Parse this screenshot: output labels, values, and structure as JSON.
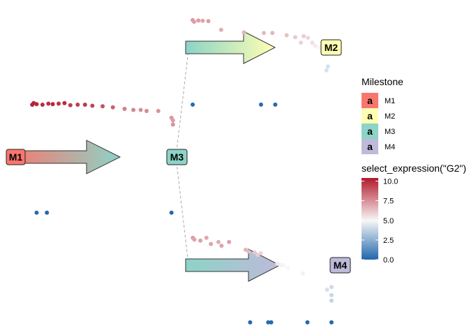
{
  "chart_data": {
    "type": "scatter",
    "plot_kind": "trajectory",
    "milestones": [
      {
        "id": "M1",
        "label": "M1",
        "color": "#F8766D"
      },
      {
        "id": "M2",
        "label": "M2",
        "color": "#FFFFB3"
      },
      {
        "id": "M3",
        "label": "M3",
        "color": "#8DD3C7"
      },
      {
        "id": "M4",
        "label": "M4",
        "color": "#BEBADA"
      }
    ],
    "edges": [
      {
        "from": "M1",
        "to": "M3"
      },
      {
        "from": "M3",
        "to": "M2"
      },
      {
        "from": "M3",
        "to": "M4"
      }
    ],
    "legend_milestone": {
      "title": "Milestone",
      "key_letter": "a",
      "items": [
        "M1",
        "M2",
        "M3",
        "M4"
      ]
    },
    "legend_color": {
      "title": "select_expression(\"G2\")",
      "ticks": [
        "10.0",
        "7.5",
        "5.0",
        "2.5",
        "0.0"
      ],
      "tick_values": [
        10,
        7.5,
        5,
        2.5,
        0
      ],
      "range": [
        0,
        10.4
      ],
      "low_color": "#2166AC",
      "mid_color": "#F7F7F7",
      "high_color": "#B2182B"
    },
    "cells": [
      {
        "edge": 0,
        "t": 0.02,
        "offset": 1.0,
        "value": 10.2
      },
      {
        "edge": 0,
        "t": 0.03,
        "offset": 1.03,
        "value": 10.1
      },
      {
        "edge": 0,
        "t": 0.05,
        "offset": 1.01,
        "value": 10.0
      },
      {
        "edge": 0,
        "t": 0.09,
        "offset": 1.0,
        "value": 9.9
      },
      {
        "edge": 0,
        "t": 0.13,
        "offset": 1.02,
        "value": 9.8
      },
      {
        "edge": 0,
        "t": 0.16,
        "offset": 1.01,
        "value": 10.0
      },
      {
        "edge": 0,
        "t": 0.2,
        "offset": 1.02,
        "value": 9.7
      },
      {
        "edge": 0,
        "t": 0.24,
        "offset": 1.03,
        "value": 9.9
      },
      {
        "edge": 0,
        "t": 0.28,
        "offset": 0.99,
        "value": 9.5
      },
      {
        "edge": 0,
        "t": 0.33,
        "offset": 1.0,
        "value": 9.4
      },
      {
        "edge": 0,
        "t": 0.38,
        "offset": 1.0,
        "value": 9.6
      },
      {
        "edge": 0,
        "t": 0.43,
        "offset": 0.98,
        "value": 9.3
      },
      {
        "edge": 0,
        "t": 0.5,
        "offset": 0.97,
        "value": 9.0
      },
      {
        "edge": 0,
        "t": 0.57,
        "offset": 0.95,
        "value": 8.6
      },
      {
        "edge": 0,
        "t": 0.65,
        "offset": 0.92,
        "value": 7.9
      },
      {
        "edge": 0,
        "t": 0.71,
        "offset": 0.9,
        "value": 7.7
      },
      {
        "edge": 0,
        "t": 0.76,
        "offset": 0.9,
        "value": 7.5
      },
      {
        "edge": 0,
        "t": 0.8,
        "offset": 0.88,
        "value": 7.6
      },
      {
        "edge": 0,
        "t": 0.88,
        "offset": 0.88,
        "value": 7.4
      },
      {
        "edge": 0,
        "t": 0.97,
        "offset": 0.75,
        "value": 7.3
      },
      {
        "edge": 0,
        "t": 0.98,
        "offset": 0.7,
        "value": 7.2
      },
      {
        "edge": 0,
        "t": 0.98,
        "offset": 0.62,
        "value": 7.4
      },
      {
        "edge": 0,
        "t": 0.05,
        "offset": -1.05,
        "value": 0.2
      },
      {
        "edge": 0,
        "t": 0.12,
        "offset": -1.05,
        "value": 0.1
      },
      {
        "edge": 0,
        "t": 0.97,
        "offset": -1.05,
        "value": 0.1
      },
      {
        "edge": 1,
        "t": 0.02,
        "offset": 0.85,
        "value": 7.3
      },
      {
        "edge": 1,
        "t": 0.03,
        "offset": 0.8,
        "value": 7.1
      },
      {
        "edge": 1,
        "t": 0.06,
        "offset": 0.84,
        "value": 7.2
      },
      {
        "edge": 1,
        "t": 0.09,
        "offset": 0.83,
        "value": 7.0
      },
      {
        "edge": 1,
        "t": 0.13,
        "offset": 0.82,
        "value": 7.1
      },
      {
        "edge": 1,
        "t": 0.22,
        "offset": 0.55,
        "value": 6.8
      },
      {
        "edge": 1,
        "t": 0.38,
        "offset": 0.47,
        "value": 6.6
      },
      {
        "edge": 1,
        "t": 0.52,
        "offset": 0.45,
        "value": 6.5
      },
      {
        "edge": 1,
        "t": 0.58,
        "offset": 0.45,
        "value": 6.6
      },
      {
        "edge": 1,
        "t": 0.68,
        "offset": 0.38,
        "value": 6.3
      },
      {
        "edge": 1,
        "t": 0.74,
        "offset": 0.32,
        "value": 6.1
      },
      {
        "edge": 1,
        "t": 0.8,
        "offset": 0.35,
        "value": 6.0
      },
      {
        "edge": 1,
        "t": 0.83,
        "offset": 0.3,
        "value": 5.8
      },
      {
        "edge": 1,
        "t": 0.78,
        "offset": 0.15,
        "value": 5.9
      },
      {
        "edge": 1,
        "t": 0.86,
        "offset": 0.15,
        "value": 5.6
      },
      {
        "edge": 1,
        "t": 0.88,
        "offset": 0.05,
        "value": 5.3
      },
      {
        "edge": 1,
        "t": 0.91,
        "offset": 0.0,
        "value": 5.1
      },
      {
        "edge": 1,
        "t": 0.96,
        "offset": -0.12,
        "value": 4.6
      },
      {
        "edge": 1,
        "t": 0.97,
        "offset": -0.35,
        "value": 4.2
      },
      {
        "edge": 1,
        "t": 0.96,
        "offset": -0.42,
        "value": 4.3
      },
      {
        "edge": 1,
        "t": 0.02,
        "offset": -1.05,
        "value": 0.1
      },
      {
        "edge": 1,
        "t": 0.5,
        "offset": -1.05,
        "value": 0.2
      },
      {
        "edge": 1,
        "t": 0.6,
        "offset": -1.05,
        "value": 0.1
      },
      {
        "edge": 2,
        "t": 0.02,
        "offset": 0.8,
        "value": 7.2
      },
      {
        "edge": 2,
        "t": 0.03,
        "offset": 0.75,
        "value": 7.0
      },
      {
        "edge": 2,
        "t": 0.07,
        "offset": 0.72,
        "value": 7.1
      },
      {
        "edge": 2,
        "t": 0.11,
        "offset": 0.8,
        "value": 6.9
      },
      {
        "edge": 2,
        "t": 0.14,
        "offset": 0.62,
        "value": 7.0
      },
      {
        "edge": 2,
        "t": 0.19,
        "offset": 0.68,
        "value": 6.8
      },
      {
        "edge": 2,
        "t": 0.21,
        "offset": 0.57,
        "value": 7.0
      },
      {
        "edge": 2,
        "t": 0.26,
        "offset": 0.68,
        "value": 7.1
      },
      {
        "edge": 2,
        "t": 0.37,
        "offset": 0.45,
        "value": 6.6
      },
      {
        "edge": 2,
        "t": 0.39,
        "offset": 0.4,
        "value": 6.5
      },
      {
        "edge": 2,
        "t": 0.43,
        "offset": 0.37,
        "value": 6.2
      },
      {
        "edge": 2,
        "t": 0.45,
        "offset": 0.3,
        "value": 6.0
      },
      {
        "edge": 2,
        "t": 0.47,
        "offset": 0.35,
        "value": 5.9
      },
      {
        "edge": 2,
        "t": 0.58,
        "offset": 0.05,
        "value": 5.4
      },
      {
        "edge": 2,
        "t": 0.6,
        "offset": 0.0,
        "value": 5.2
      },
      {
        "edge": 2,
        "t": 0.62,
        "offset": 0.0,
        "value": 5.1
      },
      {
        "edge": 2,
        "t": 0.65,
        "offset": -0.05,
        "value": 5.0
      },
      {
        "edge": 2,
        "t": 0.75,
        "offset": -0.15,
        "value": 4.8
      },
      {
        "edge": 2,
        "t": 0.91,
        "offset": -0.45,
        "value": 4.2
      },
      {
        "edge": 2,
        "t": 0.94,
        "offset": -0.4,
        "value": 4.0
      },
      {
        "edge": 2,
        "t": 0.94,
        "offset": -0.55,
        "value": 3.9
      },
      {
        "edge": 2,
        "t": 0.94,
        "offset": -0.65,
        "value": 3.8
      },
      {
        "edge": 2,
        "t": 0.4,
        "offset": -1.05,
        "value": 0.1
      },
      {
        "edge": 2,
        "t": 0.52,
        "offset": -1.05,
        "value": 0.2
      },
      {
        "edge": 2,
        "t": 0.54,
        "offset": -1.05,
        "value": 0.1
      },
      {
        "edge": 2,
        "t": 0.78,
        "offset": -1.05,
        "value": 0.1
      },
      {
        "edge": 2,
        "t": 0.94,
        "offset": -1.05,
        "value": 0.1
      }
    ]
  }
}
